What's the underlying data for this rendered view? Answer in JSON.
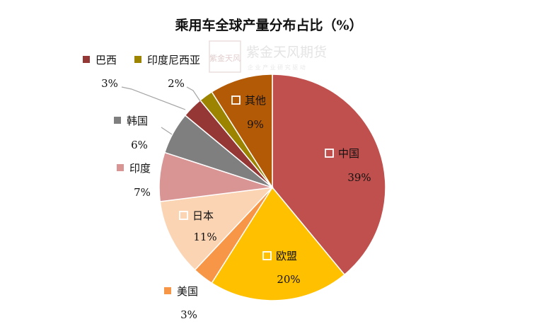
{
  "chart_data": {
    "type": "pie",
    "title": "乘用车全球产量分布占比（%）",
    "slices": [
      {
        "name": "中国",
        "value": 39,
        "label": "39%",
        "color": "#c0504d"
      },
      {
        "name": "欧盟",
        "value": 20,
        "label": "20%",
        "color": "#ffc000"
      },
      {
        "name": "美国",
        "value": 3,
        "label": "3%",
        "color": "#f79646"
      },
      {
        "name": "日本",
        "value": 11,
        "label": "11%",
        "color": "#fbd4b4"
      },
      {
        "name": "印度",
        "value": 7,
        "label": "7%",
        "color": "#d99594"
      },
      {
        "name": "韩国",
        "value": 6,
        "label": "6%",
        "color": "#7f7f7f"
      },
      {
        "name": "巴西",
        "value": 3,
        "label": "3%",
        "color": "#953735"
      },
      {
        "name": "印度尼西亚",
        "value": 2,
        "label": "2%",
        "color": "#9c8300"
      },
      {
        "name": "其他",
        "value": 9,
        "label": "9%",
        "color": "#b35a06"
      }
    ],
    "start": "12 o'clock",
    "direction": "clockwise"
  },
  "watermark": {
    "logo_text": "紫金天风",
    "brand": "紫金天风期货",
    "tagline": "企 业 产 业 研 究 驱 动"
  }
}
